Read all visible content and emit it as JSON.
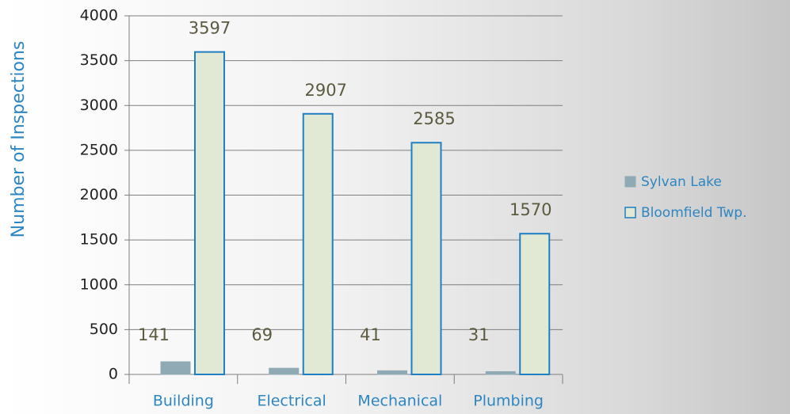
{
  "chart_data": {
    "type": "bar",
    "title": "",
    "xlabel": "",
    "ylabel": "Number of Inspections",
    "categories": [
      "Building",
      "Electrical",
      "Mechanical",
      "Plumbing"
    ],
    "series": [
      {
        "name": "Sylvan Lake",
        "values": [
          141,
          69,
          41,
          31
        ],
        "color": "#8FA9B5",
        "stroke": "#8FA9B5"
      },
      {
        "name": "Bloomfield Twp.",
        "values": [
          3597,
          2907,
          2585,
          1570
        ],
        "color": "#E1E8D4",
        "stroke": "#1F7FC0"
      }
    ],
    "ylim": [
      0,
      4000
    ],
    "yticks": [
      "0",
      "500",
      "1000",
      "1500",
      "2000",
      "2500",
      "3000",
      "3500",
      "4000"
    ],
    "grid": true,
    "legend": "right",
    "data_labels": true
  }
}
